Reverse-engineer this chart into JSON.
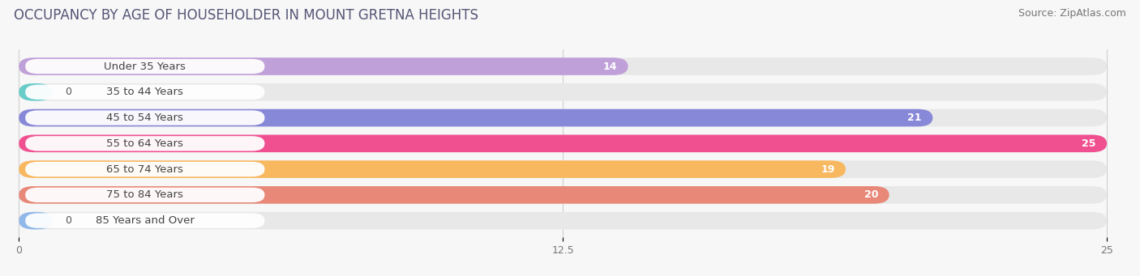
{
  "title": "OCCUPANCY BY AGE OF HOUSEHOLDER IN MOUNT GRETNA HEIGHTS",
  "source": "Source: ZipAtlas.com",
  "categories": [
    "Under 35 Years",
    "35 to 44 Years",
    "45 to 54 Years",
    "55 to 64 Years",
    "65 to 74 Years",
    "75 to 84 Years",
    "85 Years and Over"
  ],
  "values": [
    14,
    0,
    21,
    25,
    19,
    20,
    0
  ],
  "bar_colors": [
    "#c0a0d8",
    "#68ccc8",
    "#8888d8",
    "#f05090",
    "#f8b860",
    "#e88878",
    "#90b8e8"
  ],
  "xlim": [
    0,
    25
  ],
  "xticks": [
    0,
    12.5,
    25
  ],
  "background_color": "#f7f7f7",
  "bar_background_color": "#e8e8e8",
  "title_fontsize": 12,
  "source_fontsize": 9,
  "label_fontsize": 9.5,
  "value_fontsize": 9
}
